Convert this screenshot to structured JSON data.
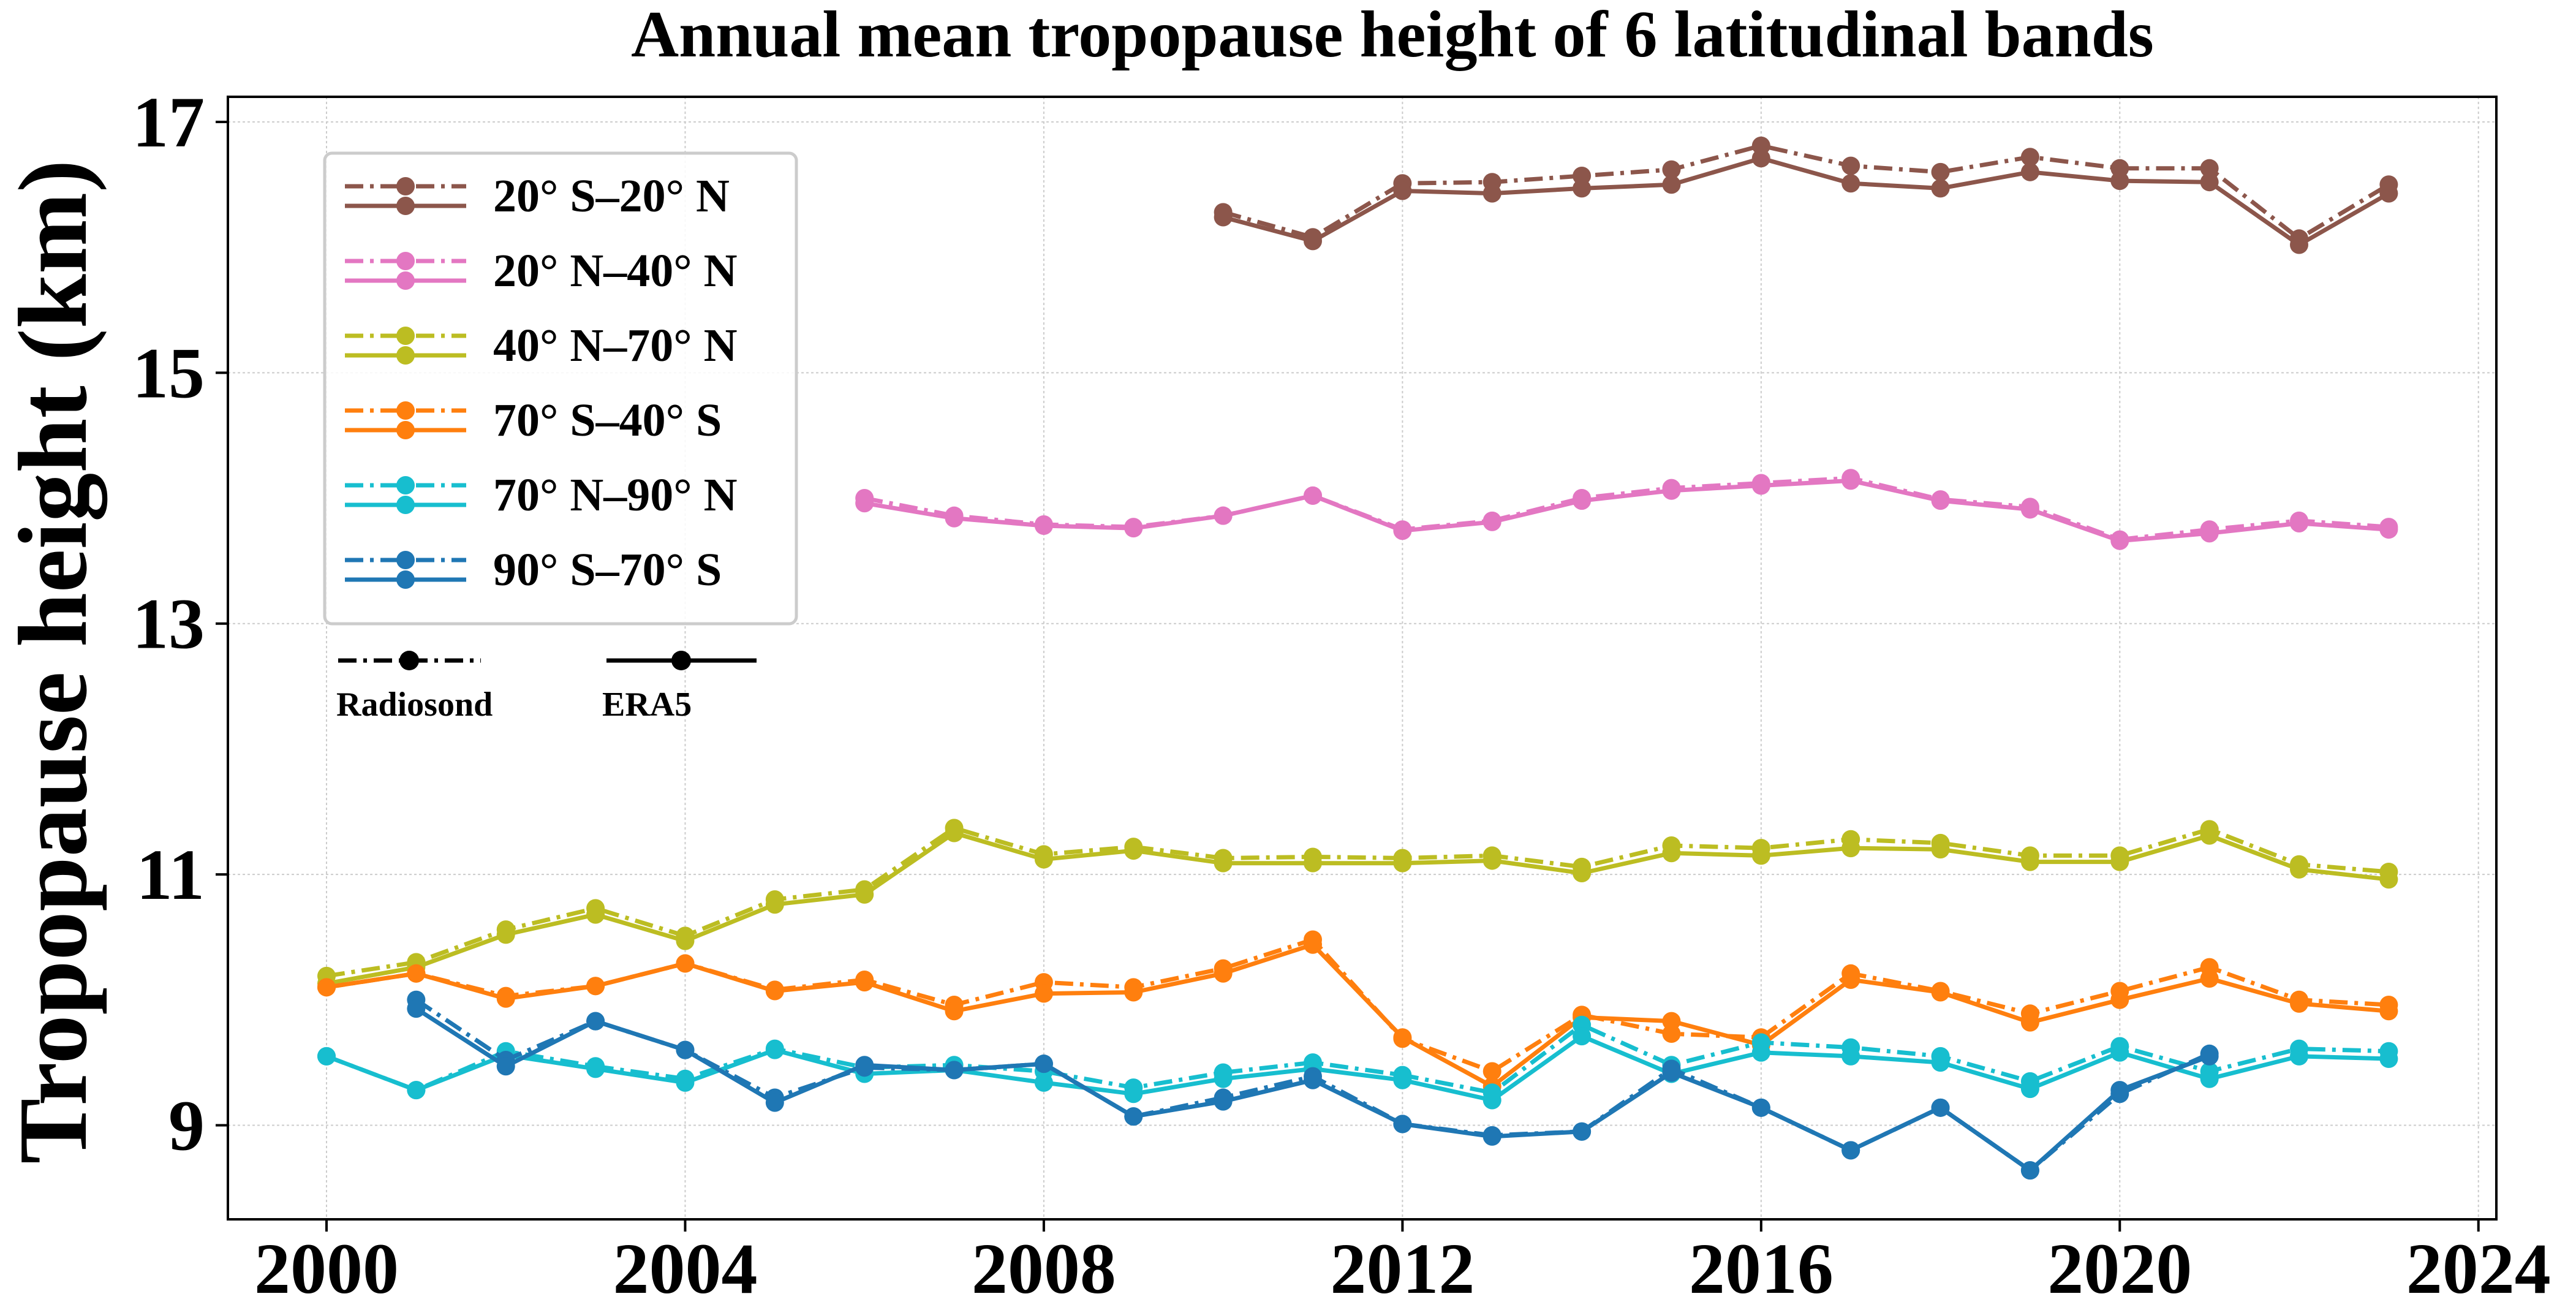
{
  "chart_data": {
    "type": "line",
    "title": "Annual mean tropopause height of 6 latitudinal bands",
    "xlabel": "",
    "ylabel": "Tropopause height (km)",
    "xlim": [
      1998.9,
      2024.2
    ],
    "ylim": [
      8.25,
      17.2
    ],
    "xticks": [
      "2000",
      "2004",
      "2008",
      "2012",
      "2016",
      "2020",
      "2024"
    ],
    "yticks": [
      "9",
      "11",
      "13",
      "15",
      "17"
    ],
    "grid": true,
    "legend_position": "upper-left",
    "line_styles": [
      {
        "label": "Radiosond",
        "dash": "dash-dot"
      },
      {
        "label": "ERA5",
        "dash": "solid"
      }
    ],
    "series": [
      {
        "name": "20° S–20° N",
        "color": "#8c564b",
        "radiosonde": {
          "x": [
            2010,
            2011,
            2012,
            2013,
            2014,
            2015,
            2016,
            2017,
            2018,
            2019,
            2020,
            2021,
            2022,
            2023
          ],
          "y": [
            16.28,
            16.08,
            16.51,
            16.52,
            16.57,
            16.62,
            16.81,
            16.65,
            16.6,
            16.72,
            16.63,
            16.63,
            16.07,
            16.5
          ]
        },
        "era5": {
          "x": [
            2010,
            2011,
            2012,
            2013,
            2014,
            2015,
            2016,
            2017,
            2018,
            2019,
            2020,
            2021,
            2022,
            2023
          ],
          "y": [
            16.24,
            16.05,
            16.45,
            16.43,
            16.47,
            16.5,
            16.71,
            16.51,
            16.47,
            16.6,
            16.53,
            16.52,
            16.02,
            16.43
          ]
        }
      },
      {
        "name": "20° N–40° N",
        "color": "#e377c2",
        "radiosonde": {
          "x": [
            2006,
            2007,
            2008,
            2009,
            2010,
            2011,
            2012,
            2013,
            2014,
            2015,
            2016,
            2017,
            2018,
            2019,
            2020,
            2021,
            2022,
            2023
          ],
          "y": [
            14.0,
            13.86,
            13.79,
            13.77,
            13.86,
            14.02,
            13.75,
            13.82,
            14.0,
            14.08,
            14.12,
            14.16,
            13.99,
            13.93,
            13.67,
            13.75,
            13.82,
            13.77
          ]
        },
        "era5": {
          "x": [
            2006,
            2007,
            2008,
            2009,
            2010,
            2011,
            2012,
            2013,
            2014,
            2015,
            2016,
            2017,
            2018,
            2019,
            2020,
            2021,
            2022,
            2023
          ],
          "y": [
            13.96,
            13.84,
            13.78,
            13.76,
            13.86,
            14.02,
            13.74,
            13.81,
            13.98,
            14.06,
            14.1,
            14.14,
            13.98,
            13.91,
            13.66,
            13.72,
            13.8,
            13.75
          ]
        }
      },
      {
        "name": "40° N–70° N",
        "color": "#bcbd22",
        "radiosonde": {
          "x": [
            2000,
            2001,
            2002,
            2003,
            2004,
            2005,
            2006,
            2007,
            2008,
            2009,
            2010,
            2011,
            2012,
            2013,
            2014,
            2015,
            2016,
            2017,
            2018,
            2019,
            2020,
            2021,
            2022,
            2023
          ],
          "y": [
            10.19,
            10.3,
            10.56,
            10.73,
            10.51,
            10.8,
            10.88,
            11.37,
            11.16,
            11.22,
            11.13,
            11.14,
            11.13,
            11.15,
            11.06,
            11.23,
            11.21,
            11.28,
            11.25,
            11.15,
            11.15,
            11.36,
            11.08,
            11.02
          ]
        },
        "era5": {
          "x": [
            2000,
            2001,
            2002,
            2003,
            2004,
            2005,
            2006,
            2007,
            2008,
            2009,
            2010,
            2011,
            2012,
            2013,
            2014,
            2015,
            2016,
            2017,
            2018,
            2019,
            2020,
            2021,
            2022,
            2023
          ],
          "y": [
            10.13,
            10.26,
            10.52,
            10.68,
            10.47,
            10.76,
            10.84,
            11.33,
            11.12,
            11.19,
            11.09,
            11.09,
            11.09,
            11.11,
            11.01,
            11.17,
            11.15,
            11.21,
            11.2,
            11.1,
            11.1,
            11.31,
            11.04,
            10.96
          ]
        }
      },
      {
        "name": "70° S–40° S",
        "color": "#ff7f0e",
        "radiosonde": {
          "x": [
            2000,
            2001,
            2002,
            2003,
            2004,
            2005,
            2006,
            2007,
            2008,
            2009,
            2010,
            2011,
            2012,
            2013,
            2014,
            2015,
            2016,
            2017,
            2018,
            2019,
            2020,
            2021,
            2022,
            2023
          ],
          "y": [
            10.1,
            10.21,
            10.03,
            10.11,
            10.29,
            10.08,
            10.16,
            9.96,
            10.14,
            10.1,
            10.25,
            10.48,
            9.69,
            9.43,
            9.88,
            9.73,
            9.7,
            10.21,
            10.07,
            9.89,
            10.07,
            10.26,
            10.0,
            9.96
          ]
        },
        "era5": {
          "x": [
            2000,
            2001,
            2002,
            2003,
            2004,
            2005,
            2006,
            2007,
            2008,
            2009,
            2010,
            2011,
            2012,
            2013,
            2014,
            2015,
            2016,
            2017,
            2018,
            2019,
            2020,
            2021,
            2022,
            2023
          ],
          "y": [
            10.1,
            10.21,
            10.01,
            10.11,
            10.29,
            10.07,
            10.14,
            9.91,
            10.05,
            10.06,
            10.21,
            10.44,
            9.7,
            9.31,
            9.86,
            9.83,
            9.64,
            10.16,
            10.06,
            9.82,
            10.0,
            10.17,
            9.97,
            9.91
          ]
        }
      },
      {
        "name": "70° N–90° N",
        "color": "#17becf",
        "radiosonde": {
          "x": [
            2000,
            2001,
            2002,
            2003,
            2004,
            2005,
            2006,
            2007,
            2008,
            2009,
            2010,
            2011,
            2012,
            2013,
            2014,
            2015,
            2016,
            2017,
            2018,
            2019,
            2020,
            2021,
            2022,
            2023
          ],
          "y": [
            9.55,
            9.28,
            9.59,
            9.47,
            9.37,
            9.61,
            9.46,
            9.48,
            9.43,
            9.3,
            9.42,
            9.5,
            9.4,
            9.26,
            9.8,
            9.48,
            9.66,
            9.62,
            9.55,
            9.35,
            9.63,
            9.43,
            9.61,
            9.59
          ]
        },
        "era5": {
          "x": [
            2000,
            2001,
            2002,
            2003,
            2004,
            2005,
            2006,
            2007,
            2008,
            2009,
            2010,
            2011,
            2012,
            2013,
            2014,
            2015,
            2016,
            2017,
            2018,
            2019,
            2020,
            2021,
            2022,
            2023
          ],
          "y": [
            9.55,
            9.28,
            9.56,
            9.45,
            9.34,
            9.6,
            9.41,
            9.44,
            9.34,
            9.25,
            9.37,
            9.45,
            9.36,
            9.2,
            9.71,
            9.41,
            9.58,
            9.55,
            9.5,
            9.29,
            9.58,
            9.37,
            9.55,
            9.53
          ]
        }
      },
      {
        "name": "90° S–70° S",
        "color": "#1f77b4",
        "radiosonde": {
          "x": [
            2001,
            2002,
            2003,
            2004,
            2005,
            2006,
            2007,
            2008,
            2009,
            2010,
            2011,
            2012,
            2013,
            2014,
            2015,
            2016,
            2017,
            2018,
            2019,
            2020,
            2021
          ],
          "y": [
            10.0,
            9.52,
            9.83,
            9.6,
            9.22,
            9.46,
            9.44,
            9.49,
            9.07,
            9.22,
            9.39,
            9.01,
            8.92,
            8.95,
            9.45,
            9.14,
            8.8,
            9.14,
            8.64,
            9.25,
            9.57
          ]
        },
        "era5": {
          "x": [
            2001,
            2002,
            2003,
            2004,
            2005,
            2006,
            2007,
            2008,
            2009,
            2010,
            2011,
            2012,
            2013,
            2014,
            2015,
            2016,
            2017,
            2018,
            2019,
            2020,
            2021
          ],
          "y": [
            9.93,
            9.47,
            9.83,
            9.6,
            9.18,
            9.48,
            9.44,
            9.49,
            9.07,
            9.19,
            9.36,
            9.01,
            8.91,
            8.95,
            9.42,
            9.14,
            8.8,
            9.14,
            8.64,
            9.28,
            9.55
          ]
        }
      }
    ]
  }
}
